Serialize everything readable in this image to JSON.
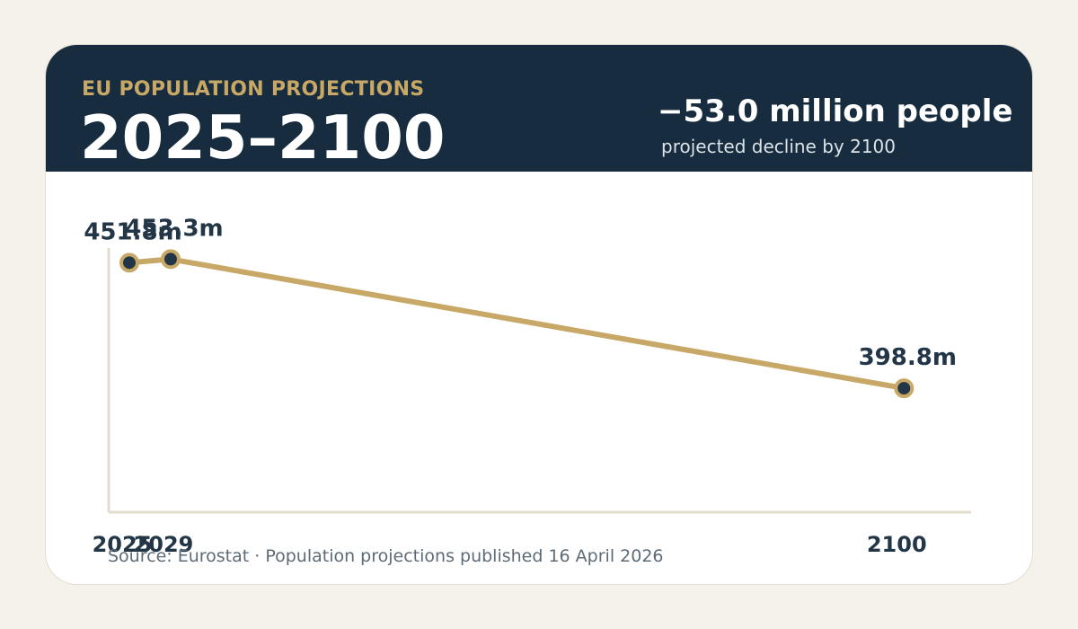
{
  "header": {
    "kicker": "EU POPULATION PROJECTIONS",
    "title": "2025–2100",
    "stat_value": "−53.0 million people",
    "stat_caption": "projected decline by 2100"
  },
  "footer": {
    "source": "Source: Eurostat · Population projections published 16 April 2026"
  },
  "colors": {
    "page_background": "#f5f1eb",
    "header_background": "#172c3e",
    "accent_gold": "#c8a866",
    "marker_fill": "#233648",
    "label_text": "#233648",
    "source_text": "#5d6b77",
    "axis": "#e2dccd"
  },
  "chart_data": {
    "type": "line",
    "x": [
      2025,
      2029,
      2100
    ],
    "tick_labels": [
      "2025",
      "2029",
      "2100"
    ],
    "series": [
      {
        "values": [
          451.8,
          453.3,
          398.8
        ],
        "data_labels": [
          "451.8m",
          "453.3m",
          "398.8m"
        ]
      }
    ],
    "xlim": [
      2023,
      2106.5
    ],
    "ylim": [
      346.5,
      458
    ],
    "grid": false
  }
}
